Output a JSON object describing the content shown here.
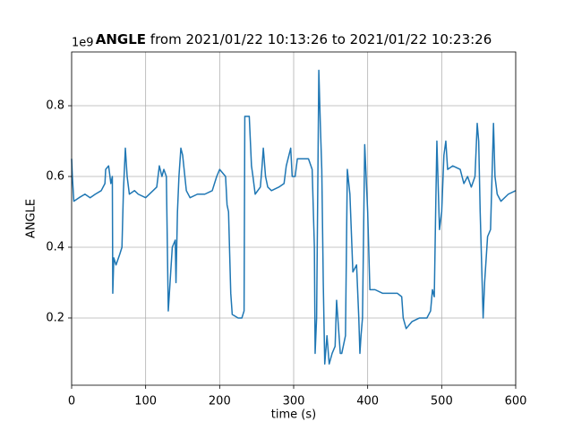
{
  "chart_data": {
    "type": "line",
    "title_variable": "ANGLE",
    "title": "from 2021/01/22 10:13:26 to 2021/01/22 10:23:26",
    "offset_text": "1e9",
    "x_label": "time (s)",
    "y_label": "ANGLE",
    "xlim": [
      0,
      600
    ],
    "ylim": [
      0.01,
      0.952
    ],
    "xticks": [
      0,
      100,
      200,
      300,
      400,
      500,
      600
    ],
    "yticks": [
      0.2,
      0.4,
      0.6,
      0.8
    ],
    "grid": true,
    "series": [
      {
        "name": "ANGLE",
        "color": "#1f77b4",
        "x": [
          0,
          1,
          3,
          10,
          18,
          25,
          32,
          40,
          45,
          46,
          50,
          53,
          55,
          55.6,
          57,
          60,
          65,
          68,
          70,
          72.6,
          75,
          78,
          85,
          90,
          100,
          110,
          115,
          118.5,
          122,
          124.6,
          128,
          130.6,
          133,
          136,
          140,
          141,
          143,
          145,
          147.6,
          150,
          155,
          160,
          170,
          180,
          190,
          196,
          200,
          208,
          210,
          212,
          215,
          217,
          225,
          230,
          233,
          234,
          240,
          243,
          245,
          248,
          255,
          257,
          259,
          262,
          265,
          270,
          280,
          287,
          290,
          296,
          298,
          302,
          305,
          314,
          320,
          325,
          328,
          329,
          331,
          334,
          336,
          338,
          340,
          342,
          345,
          348,
          352,
          356,
          358,
          363,
          365,
          370,
          372.5,
          376,
          380,
          385,
          388,
          389.5,
          391,
          393,
          396,
          400,
          403,
          410,
          420,
          430,
          440,
          446,
          448,
          452,
          460,
          470,
          480,
          485,
          487.5,
          490,
          492,
          493.5,
          497,
          500,
          503,
          505.6,
          508,
          515,
          525,
          530,
          535,
          540,
          545,
          548,
          550,
          552,
          556,
          558,
          562,
          566,
          568,
          570,
          572,
          575,
          580,
          590,
          600
        ],
        "values": [
          0.65,
          0.6,
          0.53,
          0.54,
          0.55,
          0.54,
          0.55,
          0.56,
          0.58,
          0.62,
          0.63,
          0.58,
          0.6,
          0.27,
          0.37,
          0.35,
          0.38,
          0.4,
          0.56,
          0.68,
          0.6,
          0.55,
          0.56,
          0.55,
          0.54,
          0.56,
          0.57,
          0.63,
          0.6,
          0.62,
          0.6,
          0.22,
          0.3,
          0.4,
          0.42,
          0.3,
          0.5,
          0.6,
          0.68,
          0.66,
          0.56,
          0.54,
          0.55,
          0.55,
          0.56,
          0.6,
          0.62,
          0.6,
          0.52,
          0.5,
          0.27,
          0.21,
          0.2,
          0.2,
          0.22,
          0.77,
          0.77,
          0.63,
          0.6,
          0.55,
          0.57,
          0.62,
          0.68,
          0.6,
          0.57,
          0.56,
          0.57,
          0.58,
          0.63,
          0.68,
          0.6,
          0.6,
          0.65,
          0.65,
          0.65,
          0.62,
          0.4,
          0.1,
          0.2,
          0.9,
          0.75,
          0.62,
          0.3,
          0.07,
          0.15,
          0.07,
          0.1,
          0.12,
          0.25,
          0.1,
          0.1,
          0.15,
          0.62,
          0.55,
          0.33,
          0.35,
          0.2,
          0.1,
          0.15,
          0.2,
          0.69,
          0.5,
          0.28,
          0.28,
          0.27,
          0.27,
          0.27,
          0.26,
          0.2,
          0.17,
          0.19,
          0.2,
          0.2,
          0.22,
          0.28,
          0.26,
          0.52,
          0.7,
          0.45,
          0.5,
          0.66,
          0.7,
          0.62,
          0.63,
          0.62,
          0.58,
          0.6,
          0.57,
          0.6,
          0.75,
          0.7,
          0.5,
          0.2,
          0.3,
          0.43,
          0.45,
          0.6,
          0.75,
          0.6,
          0.55,
          0.53,
          0.55,
          0.56
        ]
      }
    ]
  }
}
